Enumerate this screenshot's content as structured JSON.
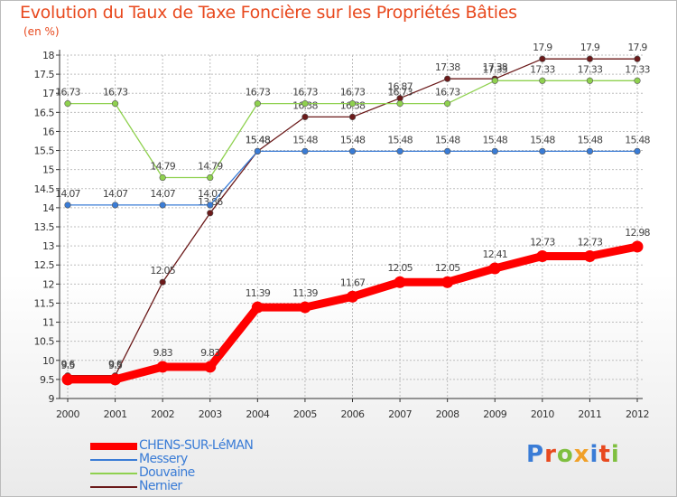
{
  "title": "Evolution du Taux de Taxe Foncière sur les Propriétés Bâties",
  "unit_label": "(en %)",
  "logo_text": "Proxiti",
  "colors": {
    "accent": "#e8491e",
    "grid": "#bdbdbd",
    "axis": "#333333",
    "label": "#333333",
    "logo": [
      "#3a7cd6",
      "#e8491e",
      "#7fbf3f",
      "#f0a028",
      "#3a7cd6",
      "#e8491e",
      "#7fbf3f"
    ]
  },
  "chart_data": {
    "type": "line",
    "x": [
      2000,
      2001,
      2002,
      2003,
      2004,
      2005,
      2006,
      2007,
      2008,
      2009,
      2010,
      2011,
      2012
    ],
    "ylim": [
      9,
      18
    ],
    "yticks": [
      "9",
      "9.5",
      "10",
      "10.5",
      "11",
      "11.5",
      "12",
      "12.5",
      "13",
      "13.5",
      "14",
      "14.5",
      "15",
      "15.5",
      "16",
      "16.5",
      "17",
      "17.5",
      "18"
    ],
    "grid": true,
    "legend_position": "bottom-left",
    "series": [
      {
        "name": "Nernier",
        "color": "#6b1a1a",
        "style": "thin",
        "values": [
          9.6,
          9.6,
          12.05,
          13.86,
          15.48,
          16.38,
          16.38,
          16.87,
          17.38,
          17.38,
          17.9,
          17.9,
          17.9
        ],
        "labels": [
          "9.6",
          "9.6",
          "12.05",
          "13.86",
          "15.48",
          "16.38",
          "16.38",
          "16.87",
          "17.38",
          "17.38",
          "17.9",
          "17.9",
          "17.9"
        ]
      },
      {
        "name": "Douvaine",
        "color": "#8fd14f",
        "style": "thin",
        "values": [
          16.73,
          16.73,
          14.79,
          14.79,
          16.73,
          16.73,
          16.73,
          16.73,
          16.73,
          17.33,
          17.33,
          17.33,
          17.33
        ],
        "labels": [
          "16.73",
          "16.73",
          "14.79",
          "14.79",
          "16.73",
          "16.73",
          "16.73",
          "16.73",
          "16.73",
          "17.33",
          "17.33",
          "17.33",
          "17.33"
        ]
      },
      {
        "name": "Messery",
        "color": "#3a7cd6",
        "style": "thin",
        "values": [
          14.07,
          14.07,
          14.07,
          14.07,
          15.48,
          15.48,
          15.48,
          15.48,
          15.48,
          15.48,
          15.48,
          15.48,
          15.48
        ],
        "labels": [
          "14.07",
          "14.07",
          "14.07",
          "14.07",
          "15.48",
          "15.48",
          "15.48",
          "15.48",
          "15.48",
          "15.48",
          "15.48",
          "15.48",
          "15.48"
        ]
      },
      {
        "name": "CHENS-SUR-LéMAN",
        "color": "#ff0000",
        "style": "thick",
        "values": [
          9.5,
          9.5,
          9.83,
          9.83,
          11.39,
          11.39,
          11.67,
          12.05,
          12.05,
          12.41,
          12.73,
          12.73,
          12.98
        ],
        "labels": [
          "9.5",
          "9.5",
          "9.83",
          "9.83",
          "11.39",
          "11.39",
          "11.67",
          "12.05",
          "12.05",
          "12.41",
          "12.73",
          "12.73",
          "12.98"
        ]
      }
    ],
    "legend": [
      "CHENS-SUR-LéMAN",
      "Messery",
      "Douvaine",
      "Nernier"
    ]
  }
}
